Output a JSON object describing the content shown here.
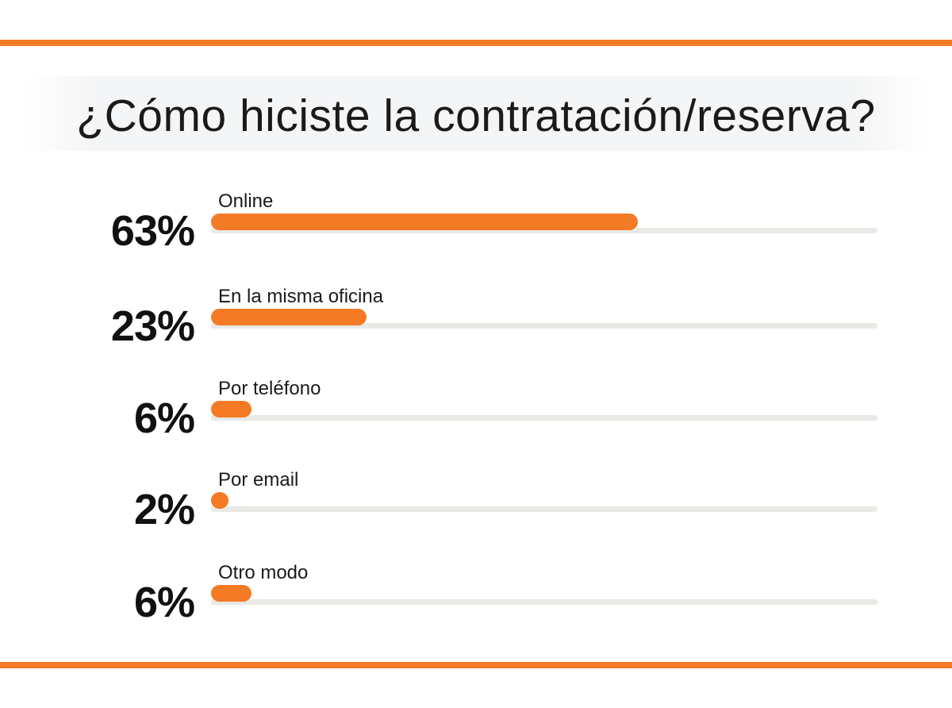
{
  "title": "¿Cómo hiciste la contratación/reserva?",
  "colors": {
    "accent": "#f47a26",
    "track": "#e9e9e6",
    "text": "#111111"
  },
  "chart_data": {
    "type": "bar",
    "orientation": "horizontal",
    "title": "¿Cómo hiciste la contratación/reserva?",
    "categories": [
      "Online",
      "En la misma oficina",
      "Por teléfono",
      "Por email",
      "Otro modo"
    ],
    "values": [
      63,
      23,
      6,
      2,
      6
    ],
    "value_labels": [
      "63%",
      "23%",
      "6%",
      "2%",
      "6%"
    ],
    "xlim": [
      0,
      100
    ],
    "grid": false,
    "legend": "none"
  }
}
